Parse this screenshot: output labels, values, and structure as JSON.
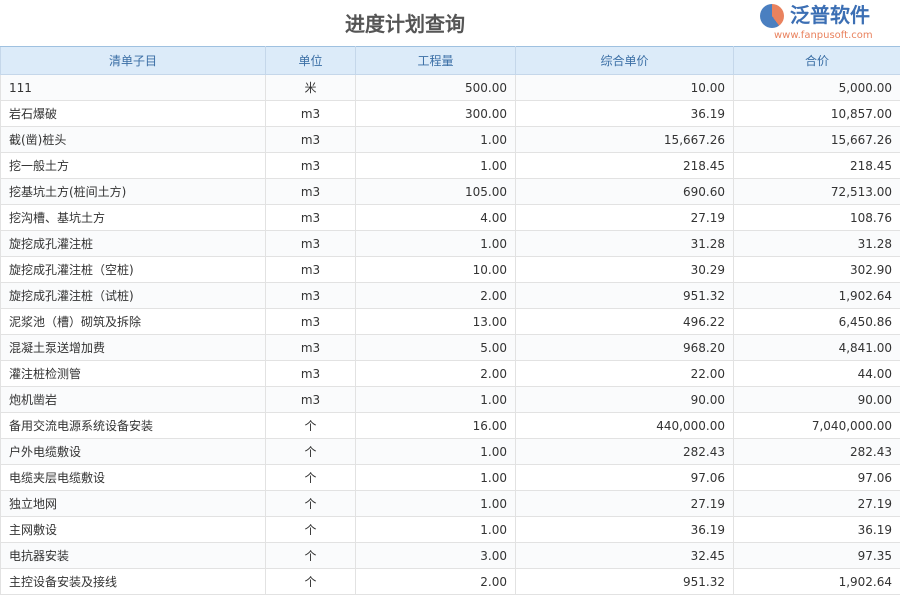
{
  "title": "进度计划查询",
  "columns": [
    "清单子目",
    "单位",
    "工程量",
    "综合单价",
    "合价"
  ],
  "rows": [
    [
      "111",
      "米",
      "500.00",
      "10.00",
      "5,000.00"
    ],
    [
      "岩石爆破",
      "m3",
      "300.00",
      "36.19",
      "10,857.00"
    ],
    [
      "截(凿)桩头",
      "m3",
      "1.00",
      "15,667.26",
      "15,667.26"
    ],
    [
      "挖一般土方",
      "m3",
      "1.00",
      "218.45",
      "218.45"
    ],
    [
      "挖基坑土方(桩间土方)",
      "m3",
      "105.00",
      "690.60",
      "72,513.00"
    ],
    [
      "挖沟槽、基坑土方",
      "m3",
      "4.00",
      "27.19",
      "108.76"
    ],
    [
      "旋挖成孔灌注桩",
      "m3",
      "1.00",
      "31.28",
      "31.28"
    ],
    [
      "旋挖成孔灌注桩（空桩)",
      "m3",
      "10.00",
      "30.29",
      "302.90"
    ],
    [
      "旋挖成孔灌注桩（试桩)",
      "m3",
      "2.00",
      "951.32",
      "1,902.64"
    ],
    [
      "泥浆池（槽）砌筑及拆除",
      "m3",
      "13.00",
      "496.22",
      "6,450.86"
    ],
    [
      "混凝土泵送增加费",
      "m3",
      "5.00",
      "968.20",
      "4,841.00"
    ],
    [
      "灌注桩检测管",
      "m3",
      "2.00",
      "22.00",
      "44.00"
    ],
    [
      "炮机凿岩",
      "m3",
      "1.00",
      "90.00",
      "90.00"
    ],
    [
      "备用交流电源系统设备安装",
      "个",
      "16.00",
      "440,000.00",
      "7,040,000.00"
    ],
    [
      "户外电缆敷设",
      "个",
      "1.00",
      "282.43",
      "282.43"
    ],
    [
      "电缆夹层电缆敷设",
      "个",
      "1.00",
      "97.06",
      "97.06"
    ],
    [
      "独立地网",
      "个",
      "1.00",
      "27.19",
      "27.19"
    ],
    [
      "主网敷设",
      "个",
      "1.00",
      "36.19",
      "36.19"
    ],
    [
      "电抗器安装",
      "个",
      "3.00",
      "32.45",
      "97.35"
    ],
    [
      "主控设备安装及接线",
      "个",
      "2.00",
      "951.32",
      "1,902.64"
    ]
  ],
  "watermark": {
    "name": "泛普软件",
    "url": "www.fanpusoft.com"
  }
}
